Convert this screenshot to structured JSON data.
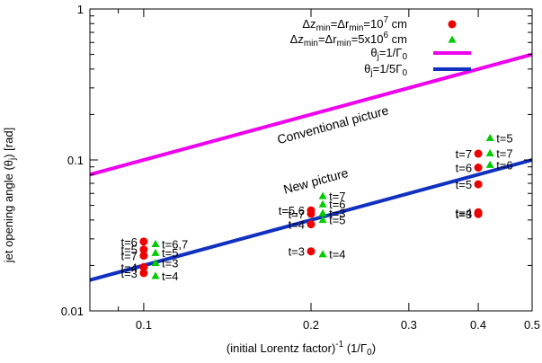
{
  "chart_data": {
    "type": "scatter",
    "title": "",
    "xlabel": "(initial Lorentz factor)",
    "xlabel_sup": "-1",
    "xlabel_unit": "(1/Γ",
    "xlabel_unit_sub": "0",
    "xlabel_unit_end": ")",
    "ylabel": "jet opening angle (θ",
    "ylabel_sub": "j",
    "ylabel_end": ") [rad]",
    "x_scale": "log",
    "y_scale": "log",
    "xlim": [
      0.08,
      0.5
    ],
    "ylim": [
      0.01,
      1
    ],
    "x_ticks": [
      {
        "value": 0.1,
        "label": "0.1"
      },
      {
        "value": 0.2,
        "label": "0.2"
      },
      {
        "value": 0.3,
        "label": "0.3"
      },
      {
        "value": 0.4,
        "label": "0.4"
      },
      {
        "value": 0.5,
        "label": "0.5"
      }
    ],
    "y_ticks": [
      {
        "value": 0.01,
        "label": "0.01"
      },
      {
        "value": 0.1,
        "label": "0.1"
      },
      {
        "value": 1,
        "label": "1"
      }
    ],
    "grid": false,
    "legend_position": "top-right",
    "series": [
      {
        "kind": "points",
        "marker": "circle",
        "color": "#ee0000",
        "legend": {
          "pre": "Δz",
          "sub1": "min",
          "mid": "=Δr",
          "sub2": "min",
          "post": "=10",
          "sup": "7",
          "tail": " cm"
        },
        "points": [
          {
            "x": 0.1,
            "y": 0.0288,
            "label": "t=6",
            "label_side": "left"
          },
          {
            "x": 0.1,
            "y": 0.0255,
            "label": "t=5",
            "label_side": "left"
          },
          {
            "x": 0.1,
            "y": 0.0232,
            "label": "t=7",
            "label_side": "left"
          },
          {
            "x": 0.1,
            "y": 0.0195,
            "label": "t=4",
            "label_side": "left"
          },
          {
            "x": 0.1,
            "y": 0.0178,
            "label": "t=3",
            "label_side": "left"
          },
          {
            "x": 0.2,
            "y": 0.0463,
            "label": "t=5,6",
            "label_side": "left"
          },
          {
            "x": 0.2,
            "y": 0.044,
            "label": "t=7",
            "label_side": "left"
          },
          {
            "x": 0.2,
            "y": 0.0375,
            "label": "t=4",
            "label_side": "left"
          },
          {
            "x": 0.2,
            "y": 0.0248,
            "label": "t=3",
            "label_side": "left"
          },
          {
            "x": 0.4,
            "y": 0.11,
            "label": "t=7",
            "label_side": "left"
          },
          {
            "x": 0.4,
            "y": 0.089,
            "label": "t=6",
            "label_side": "left"
          },
          {
            "x": 0.4,
            "y": 0.069,
            "label": "t=5",
            "label_side": "left"
          },
          {
            "x": 0.4,
            "y": 0.045,
            "label": "t=4",
            "label_side": "left"
          },
          {
            "x": 0.4,
            "y": 0.0438,
            "label": "t=3",
            "label_side": "left"
          }
        ]
      },
      {
        "kind": "points",
        "marker": "triangle",
        "color": "#00cc00",
        "legend": {
          "pre": "Δz",
          "sub1": "min",
          "mid": "=Δr",
          "sub2": "min",
          "post": "=5x10",
          "sup": "6",
          "tail": " cm"
        },
        "points": [
          {
            "x": 0.105,
            "y": 0.0278,
            "label": "t=6,7",
            "label_side": "right"
          },
          {
            "x": 0.105,
            "y": 0.0243,
            "label": "t=5",
            "label_side": "right"
          },
          {
            "x": 0.105,
            "y": 0.0208,
            "label": "t=3",
            "label_side": "right"
          },
          {
            "x": 0.105,
            "y": 0.0171,
            "label": "t=4",
            "label_side": "right"
          },
          {
            "x": 0.21,
            "y": 0.0578,
            "label": "t=7",
            "label_side": "right"
          },
          {
            "x": 0.21,
            "y": 0.051,
            "label": "t=6",
            "label_side": "right"
          },
          {
            "x": 0.21,
            "y": 0.0445,
            "label": "t=3",
            "label_side": "right"
          },
          {
            "x": 0.21,
            "y": 0.0402,
            "label": "t=5",
            "label_side": "right"
          },
          {
            "x": 0.21,
            "y": 0.0238,
            "label": "t=4",
            "label_side": "right"
          },
          {
            "x": 0.42,
            "y": 0.14,
            "label": "t=5",
            "label_side": "right"
          },
          {
            "x": 0.42,
            "y": 0.111,
            "label": "t=7",
            "label_side": "right"
          },
          {
            "x": 0.42,
            "y": 0.093,
            "label": "t=6",
            "label_side": "right"
          }
        ]
      },
      {
        "kind": "line",
        "color": "#ee00ee",
        "formula": "θj = 1/Γ0",
        "x": [
          0.08,
          0.5
        ],
        "y": [
          0.08,
          0.5
        ],
        "legend": {
          "pre": "θ",
          "sub1": "j",
          "mid": "=1/Γ",
          "sub2": "0"
        },
        "annotation": {
          "text": "Conventional picture",
          "x": 0.22,
          "y": 0.16
        }
      },
      {
        "kind": "line",
        "color": "#1030c0",
        "formula": "θj = 1/(5 Γ0)",
        "x": [
          0.08,
          0.5
        ],
        "y": [
          0.016,
          0.1
        ],
        "legend": {
          "pre": "θ",
          "sub1": "j",
          "mid": "=1/5Γ",
          "sub2": "0"
        },
        "annotation": {
          "text": "New picture",
          "x": 0.205,
          "y": 0.068
        }
      }
    ]
  }
}
